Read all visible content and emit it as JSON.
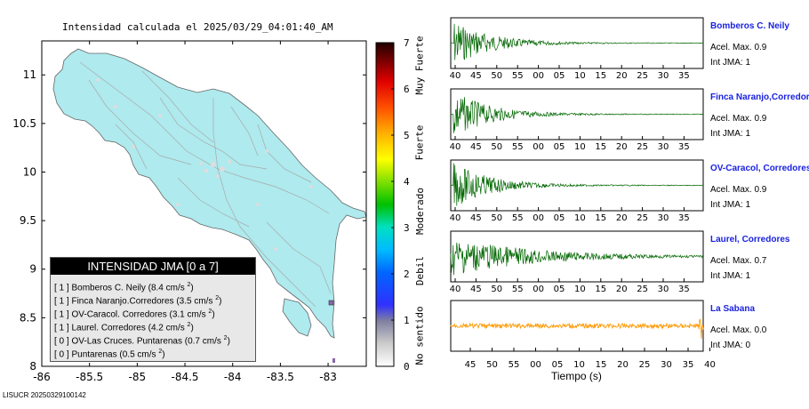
{
  "title": "Intensidad calculada el 2025/03/29_04:01:40_AM",
  "footer": "LISUCR 20250329100142",
  "colors": {
    "land": "#aeeaee",
    "wave_green": "#006600",
    "wave_orange": "#ff9900",
    "station_name": "#1a22e0"
  },
  "chart_data": [
    {
      "type": "map",
      "xlim": [
        -86,
        -82.6
      ],
      "ylim": [
        8,
        11.35
      ],
      "x_ticks": [
        "-86",
        "-85.5",
        "-85",
        "-84.5",
        "-84",
        "-83.5",
        "-83"
      ],
      "y_ticks": [
        "8",
        "8.5",
        "9",
        "9.5",
        "10",
        "10.5",
        "11"
      ],
      "grid": false
    },
    {
      "type": "colorbar",
      "range": [
        0,
        7
      ],
      "ticks": [
        "0",
        "1",
        "2",
        "3",
        "4",
        "5",
        "6",
        "7"
      ],
      "labels": [
        "No sentido",
        "Debil",
        "Moderado",
        "Fuerte",
        "Muy Fuerte"
      ]
    },
    {
      "type": "line",
      "xlabel": "Tiempo (s)",
      "traces": [
        {
          "station": "Bomberos C. Neily",
          "acc": "Acel. Max. 0.9",
          "int": "Int JMA: 1",
          "color": "#006600",
          "ticks": [
            "40",
            "45",
            "50",
            "55",
            "00",
            "05",
            "10",
            "15",
            "20",
            "25",
            "30",
            "35"
          ]
        },
        {
          "station": "Finca Naranjo,Corredores",
          "acc": "Acel. Max. 0.9",
          "int": "Int JMA: 1",
          "color": "#006600",
          "ticks": [
            "40",
            "45",
            "50",
            "55",
            "00",
            "05",
            "10",
            "15",
            "20",
            "25",
            "30",
            "35"
          ]
        },
        {
          "station": "OV-Caracol, Corredores",
          "acc": "Acel. Max. 0.9",
          "int": "Int JMA: 1",
          "color": "#006600",
          "ticks": [
            "40",
            "45",
            "50",
            "55",
            "00",
            "05",
            "10",
            "15",
            "20",
            "25",
            "30",
            "35"
          ]
        },
        {
          "station": "Laurel, Corredores",
          "acc": "Acel. Max. 0.7",
          "int": "Int JMA: 1",
          "color": "#006600",
          "ticks": [
            "40",
            "45",
            "50",
            "55",
            "00",
            "05",
            "10",
            "15",
            "20",
            "25",
            "30",
            "35"
          ]
        },
        {
          "station": "La Sabana",
          "acc": "Acel. Max. 0.0",
          "int": "Int JMA: 0",
          "color": "#ff9900",
          "ticks": [
            "45",
            "50",
            "55",
            "00",
            "05",
            "10",
            "15",
            "20",
            "25",
            "30",
            "35",
            "40"
          ]
        }
      ]
    }
  ],
  "legend": {
    "header": "INTENSIDAD JMA [0 a 7]",
    "items": [
      {
        "jma": "[ 1 ]",
        "name": "Bomberos C. Neily",
        "acc": "(8.4 cm/s",
        "exp": "2",
        "close": ")"
      },
      {
        "jma": "[ 1 ]",
        "name": "Finca Naranjo.Corredores",
        "acc": "(3.5 cm/s",
        "exp": "2",
        "close": ")"
      },
      {
        "jma": "[ 1 ]",
        "name": "OV-Caracol. Corredores",
        "acc": "(3.1 cm/s",
        "exp": "2",
        "close": ")"
      },
      {
        "jma": "[ 1 ]",
        "name": "Laurel. Corredores",
        "acc": "(4.2 cm/s",
        "exp": "2",
        "close": ")"
      },
      {
        "jma": "[ 0 ]",
        "name": "OV-Las Cruces. Puntarenas",
        "acc": "(0.7 cm/s",
        "exp": "2",
        "close": ")"
      },
      {
        "jma": "[ 0 ]",
        "name": "Puntarenas",
        "acc": "(0.5 cm/s",
        "exp": "2",
        "close": ")"
      }
    ]
  }
}
